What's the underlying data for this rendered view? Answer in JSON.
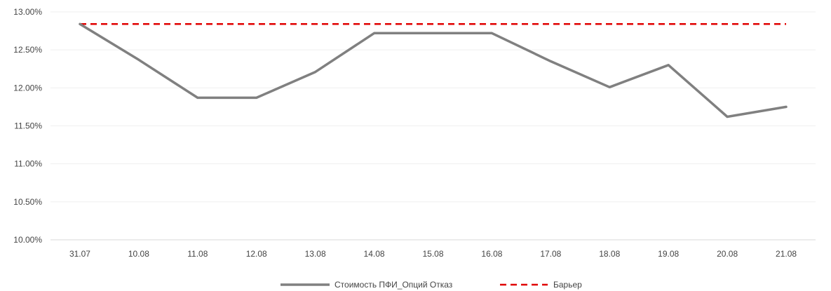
{
  "chart_data": {
    "type": "line",
    "title": "",
    "xlabel": "",
    "ylabel": "",
    "categories": [
      "31.07",
      "10.08",
      "11.08",
      "12.08",
      "13.08",
      "14.08",
      "15.08",
      "16.08",
      "17.08",
      "18.08",
      "19.08",
      "20.08",
      "21.08"
    ],
    "ylim": [
      10.0,
      13.0
    ],
    "yticks": [
      {
        "value": 10.0,
        "label": "10.00%"
      },
      {
        "value": 10.5,
        "label": "10.50%"
      },
      {
        "value": 11.0,
        "label": "11.00%"
      },
      {
        "value": 11.5,
        "label": "11.50%"
      },
      {
        "value": 12.0,
        "label": "12.00%"
      },
      {
        "value": 12.5,
        "label": "12.50%"
      },
      {
        "value": 13.0,
        "label": "13.00%"
      }
    ],
    "grid": true,
    "legend_position": "bottom",
    "series": [
      {
        "name": "Стоимость ПФИ_Опций Отказ",
        "color": "#808080",
        "style": "solid",
        "values": [
          12.84,
          12.37,
          11.87,
          11.87,
          12.21,
          12.72,
          12.72,
          12.72,
          12.35,
          12.01,
          12.3,
          11.62,
          11.75
        ]
      },
      {
        "name": "Барьер",
        "color": "#e00000",
        "style": "dashed",
        "values": [
          12.84,
          12.84,
          12.84,
          12.84,
          12.84,
          12.84,
          12.84,
          12.84,
          12.84,
          12.84,
          12.84,
          12.84,
          12.84
        ]
      }
    ]
  }
}
